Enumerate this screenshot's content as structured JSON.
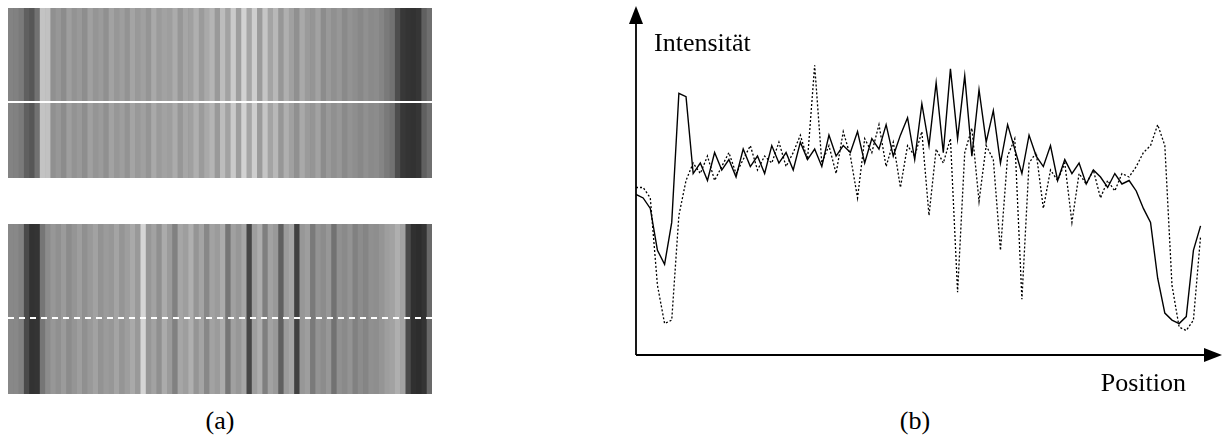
{
  "panel_labels": [
    "(a)",
    "(b)"
  ],
  "chart_data": {
    "type": "line",
    "x_label": "Position",
    "y_label": "Intensität",
    "x": [
      0,
      1,
      2,
      3,
      4,
      5,
      6,
      7,
      8,
      9,
      10,
      11,
      12,
      13,
      14,
      15,
      16,
      17,
      18,
      19,
      20,
      21,
      22,
      23,
      24,
      25,
      26,
      27,
      28,
      29,
      30,
      31,
      32,
      33,
      34,
      35,
      36,
      37,
      38,
      39,
      40,
      41,
      42,
      43,
      44,
      45,
      46,
      47,
      48,
      49,
      50,
      51,
      52,
      53,
      54,
      55,
      56,
      57,
      58,
      59,
      60,
      61,
      62,
      63,
      64,
      65,
      66,
      67,
      68,
      69,
      70,
      71,
      72,
      73,
      74,
      75,
      76,
      77,
      78,
      79
    ],
    "xlim": [
      0,
      82
    ],
    "ylim": [
      0,
      100
    ],
    "tick_labels": false,
    "grid": false,
    "series": [
      {
        "color": "#000000",
        "line_style": "dotted",
        "marker": "none",
        "values": [
          48,
          48,
          45,
          20,
          9,
          10,
          40,
          50,
          55,
          52,
          57,
          50,
          54,
          58,
          52,
          56,
          60,
          53,
          57,
          55,
          61,
          54,
          58,
          63,
          56,
          83,
          55,
          60,
          52,
          64,
          57,
          45,
          62,
          58,
          66,
          54,
          61,
          48,
          60,
          57,
          64,
          40,
          59,
          55,
          62,
          18,
          58,
          65,
          44,
          60,
          56,
          30,
          57,
          62,
          16,
          55,
          58,
          42,
          53,
          50,
          55,
          38,
          52,
          49,
          53,
          45,
          50,
          47,
          52,
          51,
          54,
          58,
          60,
          66,
          60,
          20,
          8,
          7,
          10,
          34
        ]
      },
      {
        "color": "#000000",
        "line_style": "solid",
        "marker": "none",
        "values": [
          46,
          45,
          42,
          30,
          26,
          38,
          75,
          74,
          52,
          55,
          50,
          58,
          53,
          56,
          51,
          59,
          54,
          57,
          52,
          60,
          55,
          58,
          53,
          61,
          56,
          59,
          54,
          63,
          57,
          60,
          58,
          64,
          55,
          62,
          59,
          66,
          57,
          63,
          68,
          56,
          72,
          60,
          78,
          58,
          82,
          62,
          80,
          57,
          76,
          61,
          70,
          55,
          66,
          59,
          52,
          63,
          57,
          54,
          60,
          50,
          56,
          52,
          55,
          49,
          53,
          51,
          48,
          52,
          49,
          50,
          47,
          42,
          38,
          22,
          12,
          10,
          9,
          11,
          30,
          37
        ]
      }
    ]
  }
}
